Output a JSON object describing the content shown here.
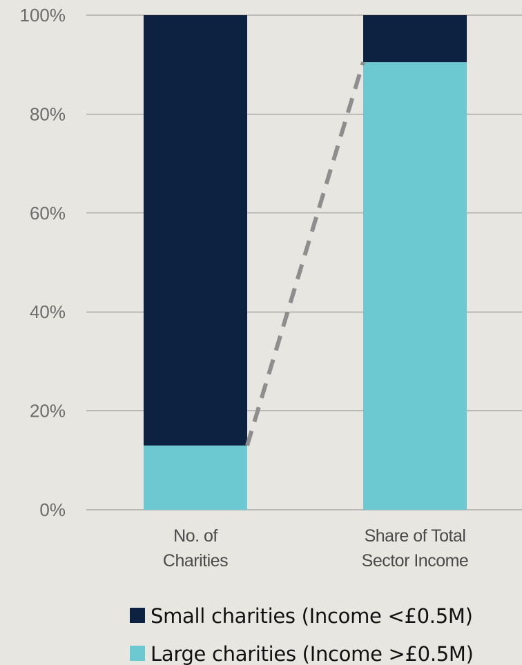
{
  "chart_data": {
    "type": "bar",
    "stacked": true,
    "categories": [
      [
        "No. of",
        "Charities"
      ],
      [
        "Share of Total",
        "Sector Income"
      ]
    ],
    "series": [
      {
        "name": "Small charities (Income <£0.5M)",
        "color": "#0d2240",
        "values": [
          87,
          9.5
        ]
      },
      {
        "name": "Large charities (Income >£0.5M)",
        "color": "#6cc9d1",
        "values": [
          13,
          90.5
        ]
      }
    ],
    "ylim": [
      0,
      100
    ],
    "yticks": [
      "0%",
      "20%",
      "40%",
      "60%",
      "80%",
      "100%"
    ],
    "grid": true,
    "legend_position": "bottom",
    "annotations": [
      {
        "type": "dashed-connector",
        "from_category": 0,
        "from_value": 13,
        "to_category": 1,
        "to_value": 90.5,
        "color": "#8e8e8e"
      }
    ]
  }
}
